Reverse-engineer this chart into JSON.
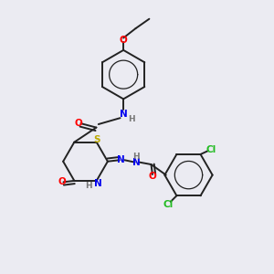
{
  "bg_color": "#ebebf2",
  "bond_color": "#222222",
  "atom_colors": {
    "O": "#ff0000",
    "N": "#0000ee",
    "S": "#bbaa00",
    "Cl": "#22bb22",
    "H": "#777777"
  },
  "figsize": [
    3.0,
    3.0
  ],
  "dpi": 100,
  "lw": 1.4,
  "fs": 7.5
}
